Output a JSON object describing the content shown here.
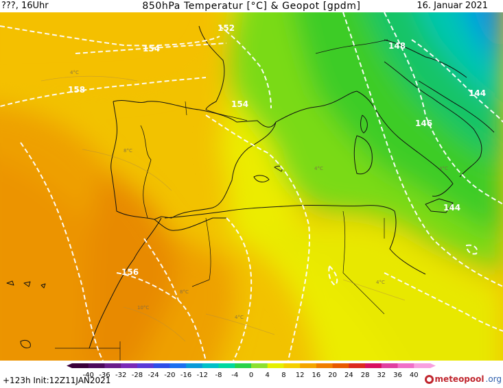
{
  "header": {
    "left": "???, 16Uhr",
    "title": "850hPa Temperatur [°C] & Geopot [gpdm]",
    "date": "16. Januar 2021"
  },
  "footer": {
    "run": "+123h  Init:12Z11JAN2021",
    "brand_main": "meteopool",
    "brand_tld": ".org"
  },
  "scale": {
    "labels": [
      "-40",
      "-36",
      "-32",
      "-28",
      "-24",
      "-20",
      "-16",
      "-12",
      "-8",
      "-4",
      "0",
      "4",
      "8",
      "12",
      "16",
      "20",
      "24",
      "28",
      "32",
      "36",
      "40"
    ],
    "colors": [
      "#3a003a",
      "#4d0a5c",
      "#6a1d8a",
      "#7a2ab8",
      "#5a3ad8",
      "#2e4ee8",
      "#1c70f0",
      "#0a9ad8",
      "#00c0c8",
      "#00d8a0",
      "#2ad24a",
      "#8ce030",
      "#e4f000",
      "#f4d000",
      "#f4a600",
      "#f07e00",
      "#e85a00",
      "#dc2a20",
      "#d81060",
      "#e040a0",
      "#f070c8",
      "#f8a0e0"
    ]
  },
  "contour_labels": {
    "geopot": [
      "152",
      "154",
      "158",
      "154",
      "148",
      "144",
      "146",
      "144",
      "156"
    ],
    "temperature": [
      "4°C",
      "8°C",
      "10°C",
      "4°C",
      "4°C",
      "4°C",
      "8°C",
      "4°C"
    ]
  }
}
